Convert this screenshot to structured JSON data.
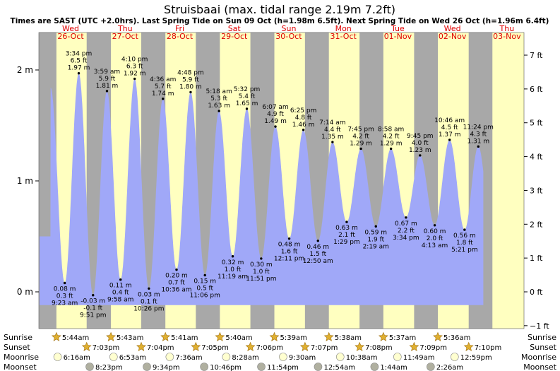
{
  "chart_data": {
    "type": "area",
    "title": "Struisbaai (max. tidal range 2.19m 7.2ft)",
    "subtitle": "Times are SAST (UTC +2.0hrs). Last Spring Tide on Sun 09 Oct (h=1.98m 6.5ft). Next Spring Tide on Wed 26 Oct (h=1.96m 6.4ft)",
    "days": [
      {
        "day": "Wed",
        "date": "26-Oct"
      },
      {
        "day": "Thu",
        "date": "27-Oct"
      },
      {
        "day": "Fri",
        "date": "28-Oct"
      },
      {
        "day": "Sat",
        "date": "29-Oct"
      },
      {
        "day": "Sun",
        "date": "30-Oct"
      },
      {
        "day": "Mon",
        "date": "31-Oct"
      },
      {
        "day": "Tue",
        "date": "01-Nov"
      },
      {
        "day": "Wed",
        "date": "02-Nov"
      },
      {
        "day": "Thu",
        "date": "03-Nov"
      }
    ],
    "y_left_unit": "m",
    "y_left_ticks": [
      {
        "v": 0,
        "label": "0 m"
      },
      {
        "v": 1,
        "label": "1 m"
      },
      {
        "v": 2,
        "label": "2 m"
      }
    ],
    "y_right_ticks": [
      {
        "v": -1,
        "label": "−1 ft"
      },
      {
        "v": 0,
        "label": "0 ft"
      },
      {
        "v": 1,
        "label": "1 ft"
      },
      {
        "v": 2,
        "label": "2 ft"
      },
      {
        "v": 3,
        "label": "3 ft"
      },
      {
        "v": 4,
        "label": "4 ft"
      },
      {
        "v": 5,
        "label": "5 ft"
      },
      {
        "v": 6,
        "label": "6 ft"
      },
      {
        "v": 7,
        "label": "7 ft"
      }
    ],
    "tides": [
      {
        "time": "9:23 am",
        "m": "0.08 m",
        "ft": "0.3 ft",
        "h": 0.08,
        "type": "low"
      },
      {
        "time": "3:34 pm",
        "m": "1.97 m",
        "ft": "6.5 ft",
        "h": 1.97,
        "type": "high"
      },
      {
        "time": "9:51 pm",
        "m": "-0.03 m",
        "ft": "-0.1 ft",
        "h": -0.03,
        "type": "low"
      },
      {
        "time": "3:59 am",
        "m": "1.81 m",
        "ft": "5.9 ft",
        "h": 1.81,
        "type": "high"
      },
      {
        "time": "9:58 am",
        "m": "0.11 m",
        "ft": "0.4 ft",
        "h": 0.11,
        "type": "low"
      },
      {
        "time": "4:10 pm",
        "m": "1.92 m",
        "ft": "6.3 ft",
        "h": 1.92,
        "type": "high"
      },
      {
        "time": "10:26 pm",
        "m": "0.03 m",
        "ft": "0.1 ft",
        "h": 0.03,
        "type": "low"
      },
      {
        "time": "4:36 am",
        "m": "1.74 m",
        "ft": "5.7 ft",
        "h": 1.74,
        "type": "high"
      },
      {
        "time": "10:36 am",
        "m": "0.20 m",
        "ft": "0.7 ft",
        "h": 0.2,
        "type": "low"
      },
      {
        "time": "4:48 pm",
        "m": "1.80 m",
        "ft": "5.9 ft",
        "h": 1.8,
        "type": "high"
      },
      {
        "time": "11:06 pm",
        "m": "0.15 m",
        "ft": "0.5 ft",
        "h": 0.15,
        "type": "low"
      },
      {
        "time": "5:18 am",
        "m": "1.63 m",
        "ft": "5.3 ft",
        "h": 1.63,
        "type": "high"
      },
      {
        "time": "11:19 am",
        "m": "0.32 m",
        "ft": "1.0 ft",
        "h": 0.32,
        "type": "low"
      },
      {
        "time": "5:32 pm",
        "m": "1.65 m",
        "ft": "5.4 ft",
        "h": 1.65,
        "type": "high"
      },
      {
        "time": "11:51 pm",
        "m": "0.30 m",
        "ft": "1.0 ft",
        "h": 0.3,
        "type": "low"
      },
      {
        "time": "6:07 am",
        "m": "1.49 m",
        "ft": "4.9 ft",
        "h": 1.49,
        "type": "high"
      },
      {
        "time": "12:11 pm",
        "m": "0.48 m",
        "ft": "1.6 ft",
        "h": 0.48,
        "type": "low"
      },
      {
        "time": "6:25 pm",
        "m": "1.46 m",
        "ft": "4.8 ft",
        "h": 1.46,
        "type": "high"
      },
      {
        "time": "12:50 am",
        "m": "0.46 m",
        "ft": "1.5 ft",
        "h": 0.46,
        "type": "low"
      },
      {
        "time": "7:14 am",
        "m": "1.35 m",
        "ft": "4.4 ft",
        "h": 1.35,
        "type": "high"
      },
      {
        "time": "1:29 pm",
        "m": "0.63 m",
        "ft": "2.1 ft",
        "h": 0.63,
        "type": "low"
      },
      {
        "time": "7:45 pm",
        "m": "1.29 m",
        "ft": "4.2 ft",
        "h": 1.29,
        "type": "high"
      },
      {
        "time": "2:19 am",
        "m": "0.59 m",
        "ft": "1.9 ft",
        "h": 0.59,
        "type": "low"
      },
      {
        "time": "8:58 am",
        "m": "1.29 m",
        "ft": "4.2 ft",
        "h": 1.29,
        "type": "high"
      },
      {
        "time": "3:34 pm",
        "m": "0.67 m",
        "ft": "2.2 ft",
        "h": 0.67,
        "type": "low"
      },
      {
        "time": "9:45 pm",
        "m": "1.23 m",
        "ft": "4.0 ft",
        "h": 1.23,
        "type": "high"
      },
      {
        "time": "4:13 am",
        "m": "0.60 m",
        "ft": "2.0 ft",
        "h": 0.6,
        "type": "low"
      },
      {
        "time": "10:46 am",
        "m": "1.37 m",
        "ft": "4.5 ft",
        "h": 1.37,
        "type": "high"
      },
      {
        "time": "5:21 pm",
        "m": "0.56 m",
        "ft": "1.8 ft",
        "h": 0.56,
        "type": "low"
      },
      {
        "time": "11:24 pm",
        "m": "1.31 m",
        "ft": "4.3 ft",
        "h": 1.31,
        "type": "high"
      }
    ],
    "rows": [
      {
        "label": "Sunrise",
        "kind": "sun",
        "times": [
          "5:44am",
          "5:43am",
          "5:41am",
          "5:40am",
          "5:39am",
          "5:38am",
          "5:37am",
          "5:36am"
        ]
      },
      {
        "label": "Sunset",
        "kind": "sun",
        "times": [
          "7:03pm",
          "7:04pm",
          "7:05pm",
          "7:06pm",
          "7:07pm",
          "7:08pm",
          "7:09pm",
          "7:10pm"
        ]
      },
      {
        "label": "Moonrise",
        "kind": "moon",
        "times": [
          "6:16am",
          "6:53am",
          "7:36am",
          "8:28am",
          "9:30am",
          "10:38am",
          "11:49am",
          "12:59pm"
        ]
      },
      {
        "label": "Moonset",
        "kind": "moon",
        "times": [
          "8:23pm",
          "9:34pm",
          "10:46pm",
          "11:54pm",
          "12:54am",
          "1:44am",
          "2:26am"
        ]
      }
    ],
    "colors": {
      "day": "#ffffc0",
      "night": "#a8a8a8",
      "water": "#a0a8f8",
      "header_text": "#e00000",
      "sun": "#e0b030",
      "moonrise": "#ffffd0",
      "moonset": "#b0b0a0"
    }
  }
}
